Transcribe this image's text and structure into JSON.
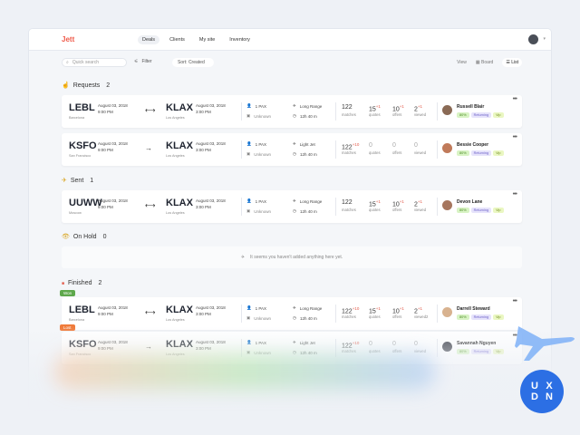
{
  "app": {
    "logo": "Jett"
  },
  "nav": {
    "items": [
      "Deals",
      "Clients",
      "My site",
      "Inventory"
    ],
    "active": "Deals"
  },
  "toolbar": {
    "search_placeholder": "Quick search",
    "filter_label": "Filter",
    "sort_label": "Sort: Created",
    "view_label": "View",
    "board_label": "Board",
    "list_label": "List"
  },
  "sections": {
    "requests": {
      "title": "Requests",
      "count": "2"
    },
    "sent": {
      "title": "Sent",
      "count": "1"
    },
    "on_hold": {
      "title": "On Hold",
      "count": "0"
    },
    "finished": {
      "title": "Finished",
      "count": "2"
    }
  },
  "empty_text": "It seems you haven't added anything here yet.",
  "badges": {
    "won": "Won",
    "lost": "Lost"
  },
  "labels": {
    "matches": "matches",
    "quotes": "quotes",
    "offers": "offers",
    "viewed": "viewed"
  },
  "cards": [
    {
      "from": "LEBL",
      "from_city": "Barcelona",
      "from_date": "August 03, 2018",
      "from_time": "9:00 PM",
      "arrow": "⟷",
      "to": "KLAX",
      "to_city": "Los Angeles",
      "to_date": "August 03, 2018",
      "to_time": "3:00 PM",
      "pax": "1 PAX",
      "aircraft": "Unknown",
      "range": "Long Range",
      "duration": "12h 40 m",
      "matches": "122",
      "matches_delta": "",
      "quotes": "15",
      "quotes_delta": "+1",
      "offers": "10",
      "offers_delta": "+1",
      "viewed": "2",
      "viewed_delta": "+1",
      "person": "Russell Blair",
      "pct": "80%",
      "tag1": "Returning",
      "tag2": "Vip",
      "viewed_label": "viewed"
    },
    {
      "from": "KSFO",
      "from_city": "San Francisco",
      "from_date": "August 03, 2018",
      "from_time": "9:00 PM",
      "arrow": "→",
      "to": "KLAX",
      "to_city": "Los Angeles",
      "to_date": "August 03, 2018",
      "to_time": "3:00 PM",
      "pax": "1 PAX",
      "aircraft": "Unknown",
      "range": "Light Jet",
      "duration": "12h 40 m",
      "matches": "122",
      "matches_delta": "+10",
      "quotes": "0",
      "quotes_delta": "",
      "offers": "0",
      "offers_delta": "",
      "viewed": "0",
      "viewed_delta": "",
      "person": "Bessie Cooper",
      "pct": "80%",
      "tag1": "Returning",
      "tag2": "Vip",
      "viewed_label": "viewed"
    },
    {
      "from": "UUWW",
      "from_city": "Moscow",
      "from_date": "August 03, 2018",
      "from_time": "9:00 PM",
      "arrow": "⟷",
      "to": "KLAX",
      "to_city": "Los Angeles",
      "to_date": "August 03, 2018",
      "to_time": "3:00 PM",
      "pax": "1 PAX",
      "aircraft": "Unknown",
      "range": "Long Range",
      "duration": "12h 40 m",
      "matches": "122",
      "matches_delta": "",
      "quotes": "15",
      "quotes_delta": "+1",
      "offers": "10",
      "offers_delta": "+1",
      "viewed": "2",
      "viewed_delta": "+1",
      "person": "Devon Lane",
      "pct": "80%",
      "tag1": "Returning",
      "tag2": "Vip",
      "viewed_label": "viewed"
    },
    {
      "from": "LEBL",
      "from_city": "Barcelona",
      "from_date": "August 03, 2018",
      "from_time": "9:00 PM",
      "arrow": "⟷",
      "to": "KLAX",
      "to_city": "Los Angeles",
      "to_date": "August 03, 2018",
      "to_time": "3:00 PM",
      "pax": "1 PAX",
      "aircraft": "Unknown",
      "range": "Long Range",
      "duration": "12h 40 m",
      "matches": "122",
      "matches_delta": "+10",
      "quotes": "15",
      "quotes_delta": "+1",
      "offers": "10",
      "offers_delta": "+1",
      "viewed": "2",
      "viewed_delta": "+1",
      "person": "Darrell Steward",
      "pct": "80%",
      "tag1": "Returning",
      "tag2": "Vip",
      "viewed_label": "viewed2"
    },
    {
      "from": "KSFO",
      "from_city": "San Francisco",
      "from_date": "August 03, 2018",
      "from_time": "9:00 PM",
      "arrow": "→",
      "to": "KLAX",
      "to_city": "Los Angeles",
      "to_date": "August 03, 2018",
      "to_time": "3:00 PM",
      "pax": "1 PAX",
      "aircraft": "Unknown",
      "range": "Light Jet",
      "duration": "12h 40 m",
      "matches": "122",
      "matches_delta": "+10",
      "quotes": "0",
      "quotes_delta": "",
      "offers": "0",
      "offers_delta": "",
      "viewed": "0",
      "viewed_delta": "",
      "person": "Savannah Nguyen",
      "pct": "80%",
      "tag1": "Returning",
      "tag2": "Vip",
      "viewed_label": "viewed"
    }
  ],
  "watermark": {
    "letters": [
      "U",
      "X",
      "D",
      "N"
    ]
  },
  "colors": {
    "logo": "#ef5a4a",
    "delta": "#e25a4a",
    "won": "#5ea84c",
    "lost": "#ef7a3a",
    "brand": "#2c6fe4"
  }
}
